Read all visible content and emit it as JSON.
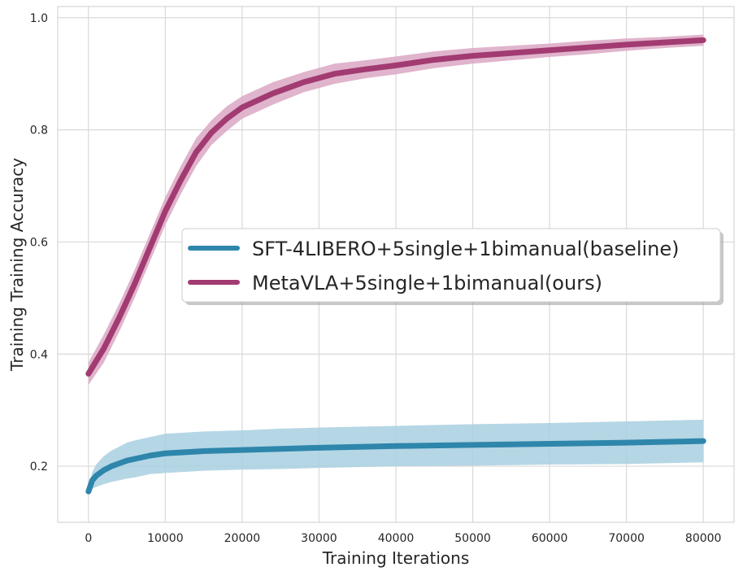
{
  "chart_data": {
    "type": "line",
    "title": "",
    "xlabel": "Training Iterations",
    "ylabel": "Training Training Accuracy",
    "xlim": [
      -4000,
      84000
    ],
    "ylim": [
      0.1,
      1.02
    ],
    "xticks": [
      0,
      10000,
      20000,
      30000,
      40000,
      50000,
      60000,
      70000,
      80000
    ],
    "yticks": [
      0.2,
      0.4,
      0.6,
      0.8,
      1.0
    ],
    "grid": true,
    "legend_position": "center-right",
    "series": [
      {
        "name": "SFT-4LIBERO+5single+1bimanual(baseline)",
        "color": "#2e86ab",
        "band_color": "#a8cfe0",
        "x": [
          0,
          500,
          1000,
          2000,
          3000,
          4000,
          5000,
          6000,
          8000,
          10000,
          15000,
          20000,
          25000,
          30000,
          40000,
          50000,
          60000,
          70000,
          80000
        ],
        "y": [
          0.155,
          0.175,
          0.183,
          0.193,
          0.2,
          0.205,
          0.21,
          0.213,
          0.219,
          0.223,
          0.227,
          0.229,
          0.231,
          0.233,
          0.236,
          0.238,
          0.24,
          0.242,
          0.245
        ],
        "band_halfwidth": [
          0.005,
          0.015,
          0.02,
          0.025,
          0.028,
          0.03,
          0.032,
          0.033,
          0.033,
          0.035,
          0.035,
          0.035,
          0.036,
          0.036,
          0.036,
          0.037,
          0.037,
          0.038,
          0.038
        ]
      },
      {
        "name": "MetaVLA+5single+1bimanual(ours)",
        "color": "#a23b72",
        "band_color": "#dba7c3",
        "x": [
          0,
          2000,
          4000,
          6000,
          8000,
          10000,
          12000,
          14000,
          16000,
          18000,
          20000,
          24000,
          28000,
          32000,
          36000,
          40000,
          45000,
          50000,
          55000,
          60000,
          65000,
          70000,
          75000,
          80000
        ],
        "y": [
          0.365,
          0.41,
          0.465,
          0.525,
          0.59,
          0.655,
          0.71,
          0.76,
          0.795,
          0.82,
          0.84,
          0.865,
          0.885,
          0.9,
          0.908,
          0.915,
          0.925,
          0.932,
          0.937,
          0.942,
          0.947,
          0.952,
          0.956,
          0.96
        ],
        "band_halfwidth": [
          0.02,
          0.025,
          0.025,
          0.025,
          0.025,
          0.025,
          0.025,
          0.025,
          0.022,
          0.022,
          0.02,
          0.02,
          0.018,
          0.018,
          0.016,
          0.016,
          0.015,
          0.014,
          0.013,
          0.012,
          0.012,
          0.011,
          0.01,
          0.01
        ]
      }
    ]
  }
}
